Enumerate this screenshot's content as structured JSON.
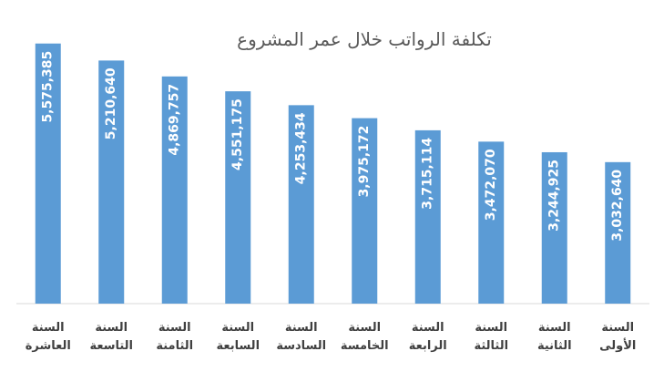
{
  "chart_data": {
    "type": "bar",
    "title": "تكلفة الرواتب خلال عمر المشروع",
    "categories": [
      "السنة العاشرة",
      "السنة التاسعة",
      "السنة الثامنة",
      "السنة السابعة",
      "السنة السادسة",
      "السنة الخامسة",
      "السنة الرابعة",
      "السنة الثالثة",
      "السنة الثانية",
      "السنة الأولى"
    ],
    "values": [
      5575385,
      5210640,
      4869757,
      4551175,
      4253434,
      3975172,
      3715114,
      3472070,
      3244925,
      3032640
    ],
    "value_labels": [
      "5,575,385",
      "5,210,640",
      "4,869,757",
      "4,551,175",
      "4,253,434",
      "3,975,172",
      "3,715,114",
      "3,472,070",
      "3,244,925",
      "3,032,640"
    ],
    "color": "#5b9bd5",
    "ylim": [
      0,
      6000000
    ]
  }
}
